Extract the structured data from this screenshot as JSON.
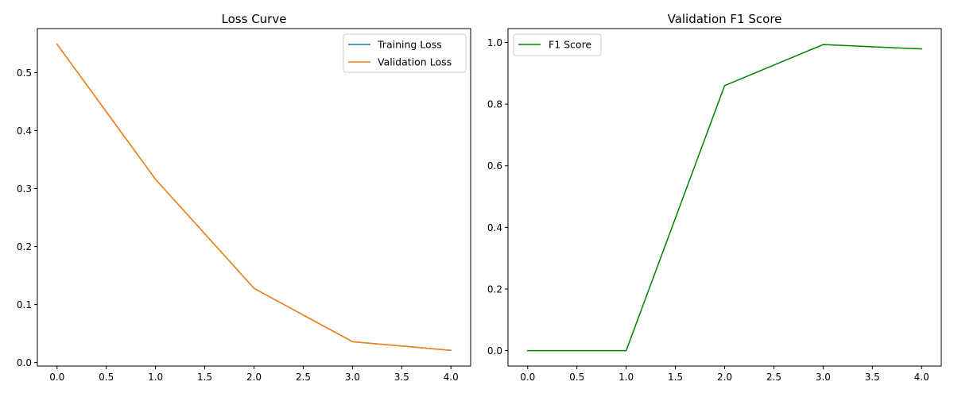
{
  "chart_data": [
    {
      "type": "line",
      "title": "Loss Curve",
      "xlabel": "",
      "ylabel": "",
      "x": [
        0,
        1,
        2,
        3,
        4
      ],
      "xlim": [
        -0.2,
        4.2
      ],
      "ylim": [
        -0.006,
        0.576
      ],
      "xticks": [
        0.0,
        0.5,
        1.0,
        1.5,
        2.0,
        2.5,
        3.0,
        3.5,
        4.0
      ],
      "yticks": [
        0.0,
        0.1,
        0.2,
        0.3,
        0.4,
        0.5
      ],
      "xtick_labels": [
        "0.0",
        "0.5",
        "1.0",
        "1.5",
        "2.0",
        "2.5",
        "3.0",
        "3.5",
        "4.0"
      ],
      "ytick_labels": [
        "0.0",
        "0.1",
        "0.2",
        "0.3",
        "0.4",
        "0.5"
      ],
      "grid": false,
      "legend_position": "top-right",
      "series": [
        {
          "name": "Training Loss",
          "color": "#1f77b4",
          "values": [
            0.549,
            0.316,
            0.128,
            0.036,
            0.021
          ]
        },
        {
          "name": "Validation Loss",
          "color": "#ff7f0e",
          "values": [
            0.549,
            0.316,
            0.128,
            0.036,
            0.021
          ]
        }
      ]
    },
    {
      "type": "line",
      "title": "Validation F1 Score",
      "xlabel": "",
      "ylabel": "",
      "x": [
        0,
        1,
        2,
        3,
        4
      ],
      "xlim": [
        -0.2,
        4.2
      ],
      "ylim": [
        -0.05,
        1.045
      ],
      "xticks": [
        0.0,
        0.5,
        1.0,
        1.5,
        2.0,
        2.5,
        3.0,
        3.5,
        4.0
      ],
      "yticks": [
        0.0,
        0.2,
        0.4,
        0.6,
        0.8,
        1.0
      ],
      "xtick_labels": [
        "0.0",
        "0.5",
        "1.0",
        "1.5",
        "2.0",
        "2.5",
        "3.0",
        "3.5",
        "4.0"
      ],
      "ytick_labels": [
        "0.0",
        "0.2",
        "0.4",
        "0.6",
        "0.8",
        "1.0"
      ],
      "grid": false,
      "legend_position": "top-left",
      "series": [
        {
          "name": "F1 Score",
          "color": "#008000",
          "values": [
            0.0,
            0.0,
            0.86,
            0.993,
            0.979
          ]
        }
      ]
    }
  ]
}
